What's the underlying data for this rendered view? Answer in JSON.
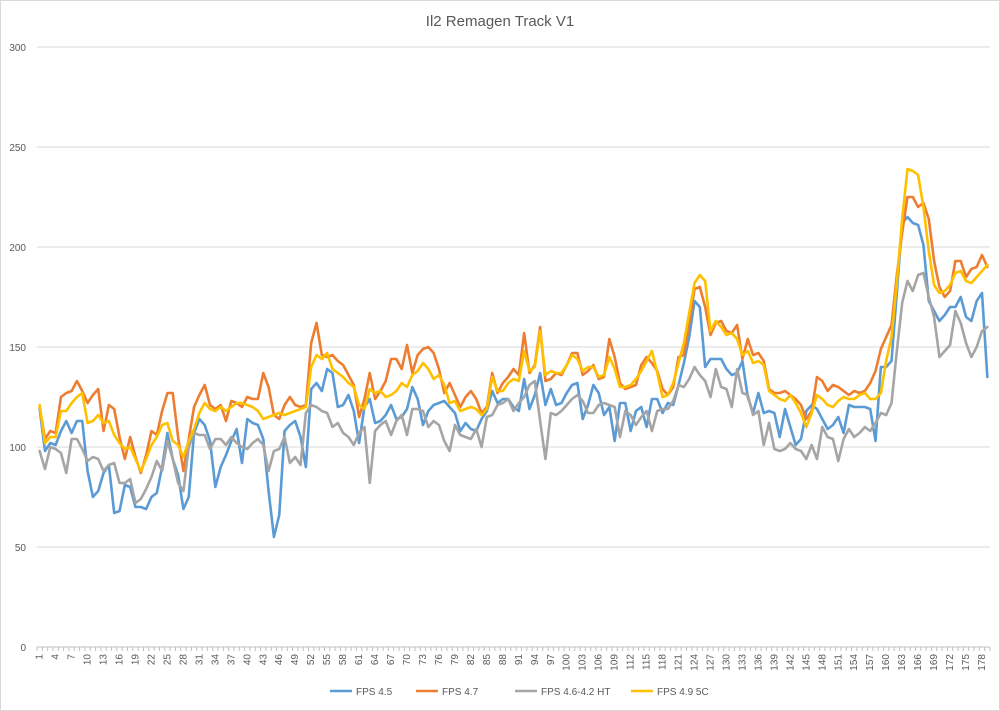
{
  "chart_data": {
    "type": "line",
    "title": "Il2 Remagen Track V1",
    "xlabel": "",
    "ylabel": "",
    "ylim": [
      0,
      300
    ],
    "y_ticks": [
      0,
      50,
      100,
      150,
      200,
      250,
      300
    ],
    "x_tick_labels": [
      "1",
      "4",
      "7",
      "10",
      "13",
      "16",
      "19",
      "22",
      "25",
      "28",
      "31",
      "34",
      "37",
      "40",
      "43",
      "46",
      "49",
      "52",
      "55",
      "58",
      "61",
      "64",
      "67",
      "70",
      "73",
      "76",
      "79",
      "82",
      "85",
      "88",
      "91",
      "94",
      "97",
      "100",
      "103",
      "106",
      "109",
      "112",
      "115",
      "118",
      "121",
      "124",
      "127",
      "130",
      "133",
      "136",
      "139",
      "142",
      "145",
      "148",
      "151",
      "154",
      "157",
      "160",
      "163",
      "166",
      "169",
      "172",
      "175",
      "178"
    ],
    "grid": "horizontal",
    "legend_position": "bottom",
    "series": [
      {
        "name": "FPS 4.5",
        "color": "#5B9BD5",
        "values": [
          119,
          98,
          102,
          101,
          108,
          113,
          107,
          113,
          113,
          88,
          75,
          78,
          87,
          91,
          67,
          68,
          81,
          80,
          70,
          70,
          69,
          75,
          77,
          90,
          107,
          94,
          86,
          69,
          75,
          107,
          114,
          111,
          103,
          80,
          90,
          96,
          103,
          109,
          92,
          114,
          112,
          111,
          104,
          78,
          55,
          66,
          108,
          111,
          113,
          105,
          90,
          129,
          132,
          128,
          139,
          137,
          120,
          121,
          126,
          118,
          102,
          120,
          124,
          112,
          113,
          116,
          121,
          114,
          115,
          119,
          130,
          124,
          111,
          118,
          121,
          122,
          123,
          120,
          117,
          108,
          112,
          109,
          108,
          114,
          118,
          128,
          122,
          124,
          124,
          120,
          118,
          134,
          119,
          126,
          137,
          121,
          129,
          121,
          122,
          127,
          131,
          132,
          114,
          121,
          131,
          127,
          116,
          120,
          103,
          122,
          122,
          108,
          118,
          120,
          110,
          124,
          124,
          117,
          122,
          121,
          131,
          142,
          155,
          173,
          170,
          140,
          144,
          144,
          144,
          139,
          136,
          137,
          143,
          125,
          117,
          127,
          117,
          118,
          117,
          105,
          119,
          110,
          101,
          104,
          118,
          121,
          119,
          114,
          109,
          111,
          115,
          107,
          121,
          120,
          120,
          120,
          119,
          103,
          140,
          140,
          143,
          177,
          212,
          215,
          212,
          211,
          201,
          173,
          168,
          163,
          166,
          170,
          170,
          175,
          165,
          163,
          173,
          177,
          135
        ]
      },
      {
        "name": "FPS 4.7",
        "color": "#ED7D31",
        "values": [
          120,
          104,
          108,
          107,
          125,
          127,
          128,
          133,
          128,
          122,
          126,
          129,
          108,
          121,
          119,
          105,
          94,
          105,
          95,
          87,
          96,
          108,
          106,
          118,
          127,
          127,
          105,
          88,
          104,
          120,
          126,
          131,
          121,
          119,
          121,
          113,
          123,
          122,
          120,
          125,
          124,
          124,
          137,
          130,
          116,
          114,
          121,
          125,
          121,
          120,
          121,
          152,
          162,
          146,
          145,
          146,
          143,
          141,
          136,
          131,
          115,
          124,
          137,
          124,
          128,
          133,
          144,
          144,
          139,
          151,
          137,
          146,
          149,
          150,
          147,
          139,
          127,
          132,
          126,
          120,
          125,
          128,
          124,
          117,
          120,
          137,
          127,
          132,
          135,
          139,
          136,
          157,
          137,
          141,
          160,
          133,
          134,
          137,
          136,
          141,
          147,
          147,
          136,
          138,
          141,
          134,
          135,
          154,
          145,
          132,
          129,
          130,
          131,
          141,
          145,
          142,
          138,
          129,
          126,
          130,
          145,
          146,
          162,
          179,
          180,
          170,
          156,
          162,
          163,
          158,
          157,
          161,
          144,
          154,
          146,
          147,
          143,
          129,
          127,
          127,
          128,
          126,
          124,
          121,
          114,
          118,
          135,
          133,
          128,
          131,
          130,
          128,
          126,
          128,
          127,
          128,
          132,
          138,
          149,
          155,
          161,
          186,
          207,
          225,
          225,
          220,
          222,
          214,
          193,
          180,
          175,
          178,
          193,
          193,
          185,
          189,
          190,
          196,
          190
        ]
      },
      {
        "name": "FPS 4.6-4.2 HT",
        "color": "#A5A5A5",
        "values": [
          98,
          89,
          100,
          99,
          97,
          87,
          104,
          104,
          99,
          93,
          95,
          94,
          88,
          91,
          92,
          82,
          82,
          84,
          72,
          74,
          79,
          85,
          93,
          88,
          103,
          94,
          82,
          78,
          100,
          107,
          106,
          106,
          99,
          104,
          104,
          101,
          105,
          102,
          100,
          99,
          102,
          104,
          101,
          88,
          98,
          99,
          105,
          92,
          95,
          91,
          117,
          121,
          120,
          118,
          117,
          110,
          112,
          107,
          105,
          101,
          107,
          110,
          82,
          108,
          111,
          113,
          106,
          113,
          116,
          106,
          119,
          119,
          118,
          110,
          113,
          111,
          103,
          98,
          111,
          106,
          105,
          104,
          109,
          100,
          115,
          116,
          121,
          122,
          124,
          118,
          122,
          125,
          131,
          133,
          113,
          94,
          117,
          116,
          118,
          121,
          124,
          126,
          123,
          117,
          117,
          121,
          122,
          121,
          120,
          105,
          118,
          116,
          111,
          115,
          118,
          108,
          118,
          119,
          119,
          123,
          131,
          130,
          134,
          140,
          136,
          133,
          125,
          139,
          130,
          129,
          120,
          139,
          127,
          126,
          116,
          118,
          101,
          112,
          99,
          98,
          99,
          102,
          99,
          98,
          94,
          101,
          94,
          110,
          105,
          104,
          93,
          104,
          109,
          105,
          107,
          110,
          108,
          112,
          117,
          116,
          122,
          148,
          172,
          183,
          178,
          186,
          187,
          175,
          165,
          145,
          148,
          151,
          168,
          162,
          152,
          145,
          150,
          158,
          160
        ]
      },
      {
        "name": "FPS 4.9 5C",
        "color": "#FFC000",
        "values": [
          121,
          102,
          105,
          105,
          118,
          118,
          122,
          125,
          127,
          112,
          113,
          116,
          112,
          113,
          106,
          102,
          99,
          100,
          94,
          88,
          94,
          101,
          105,
          111,
          112,
          103,
          101,
          95,
          103,
          109,
          117,
          122,
          119,
          118,
          120,
          118,
          120,
          122,
          122,
          121,
          120,
          118,
          114,
          115,
          116,
          117,
          116,
          117,
          118,
          119,
          120,
          140,
          146,
          144,
          147,
          139,
          137,
          135,
          132,
          130,
          121,
          119,
          129,
          127,
          128,
          125,
          126,
          128,
          132,
          130,
          136,
          138,
          142,
          139,
          134,
          136,
          131,
          122,
          123,
          118,
          119,
          120,
          119,
          116,
          119,
          135,
          128,
          128,
          132,
          134,
          133,
          148,
          138,
          140,
          158,
          136,
          138,
          137,
          137,
          141,
          146,
          144,
          138,
          140,
          140,
          135,
          136,
          145,
          139,
          130,
          130,
          131,
          134,
          138,
          143,
          148,
          137,
          125,
          126,
          132,
          142,
          152,
          167,
          182,
          186,
          183,
          158,
          163,
          160,
          156,
          157,
          154,
          146,
          148,
          142,
          143,
          141,
          128,
          126,
          124,
          123,
          126,
          122,
          117,
          110,
          117,
          126,
          124,
          121,
          120,
          123,
          125,
          124,
          124,
          126,
          127,
          124,
          124,
          127,
          143,
          155,
          182,
          214,
          239,
          238,
          236,
          220,
          198,
          181,
          177,
          178,
          181,
          187,
          188,
          183,
          182,
          185,
          188,
          191
        ]
      }
    ]
  }
}
